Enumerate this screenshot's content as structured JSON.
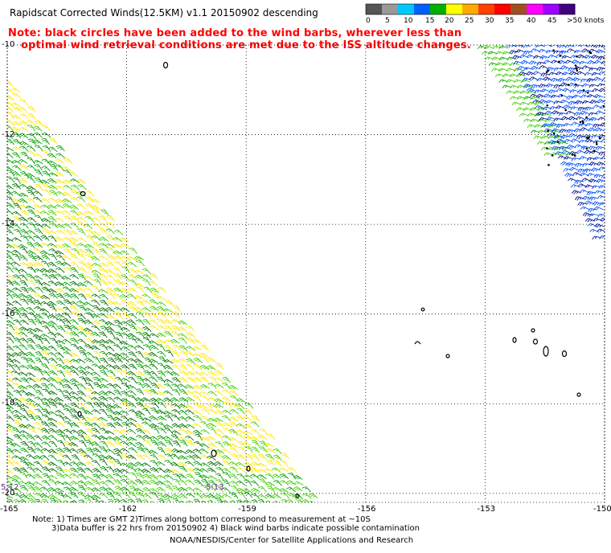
{
  "header": {
    "title": "Rapidscat Corrected Winds(12.5KM) v1.1 20150902 descending",
    "note_line1": "Note: black circles have been added to the wind barbs, wherever less than",
    "note_line2": "optimal wind retrieval conditions are met due to the ISS altitude changes."
  },
  "colorbar": {
    "labels": [
      "0",
      "5",
      "10",
      "15",
      "20",
      "25",
      "30",
      "35",
      "40",
      "45",
      ">50 knots"
    ],
    "colors": [
      "#555555",
      "#999999",
      "#00c8ff",
      "#0060ff",
      "#00b000",
      "#ffff00",
      "#ffaa00",
      "#ff4000",
      "#ff0000",
      "#a05020",
      "#ff00ff",
      "#a000ff",
      "#400080"
    ]
  },
  "map": {
    "lat_labels": [
      "-10",
      "-12",
      "-14",
      "-16",
      "-18",
      "-20"
    ],
    "lon_labels": [
      "-165",
      "-162",
      "-159",
      "-156",
      "-153",
      "-150"
    ],
    "lat_range": [
      -20.2,
      -10
    ],
    "lon_range": [
      -165,
      -150
    ],
    "grid": "dotted",
    "time_labels": [
      "5:12",
      "5:13"
    ],
    "barb_colors": {
      "yellow": "#ffe800",
      "green": "#00a000",
      "dark_green": "#007000",
      "light_green": "#40d000",
      "blue": "#0050ff",
      "dark_blue": "#001090",
      "orange": "#e07000"
    }
  },
  "footer": {
    "line1": "Note: 1) Times are GMT 2)Times along bottom correspond to measurement at ~10S",
    "line2": "3)Data buffer is 22 hrs from 20150902 4) Black wind barbs indicate possible contamination",
    "line3": "NOAA/NESDIS/Center for Satellite Applications and Research"
  }
}
